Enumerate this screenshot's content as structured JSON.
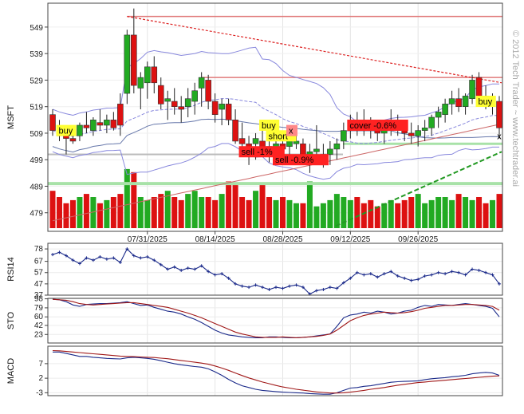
{
  "watermark": "© 2012 Tech Trader ~ www.techtrader.ai",
  "colors": {
    "up": "#22aa22",
    "down": "#dd1111",
    "band": "#8888dd",
    "ma_dark": "#6677aa",
    "ma_red": "#cc6666",
    "blue_line": "#1b2a8a",
    "red_line": "#a01818",
    "green_line": "#1a8a1a",
    "hline_red": "#e07a7a",
    "hline_green": "#a8e2a8",
    "buy_bg": "#ffff33",
    "sell_bg": "#ff2222"
  },
  "chart_data": [
    {
      "name": "MSFT",
      "type": "candlestick",
      "ylabel": "MSFT",
      "ylim": [
        472,
        558
      ],
      "yticks": [
        479,
        489,
        499,
        509,
        519,
        529,
        539,
        549
      ],
      "x_labels": [
        "07/31/2025",
        "08/14/2025",
        "08/28/2025",
        "09/12/2025",
        "09/26/2025"
      ],
      "x_label_index": [
        14,
        24,
        34,
        44,
        54
      ],
      "ohlc": [
        [
          516,
          518,
          508,
          510
        ],
        [
          511,
          514,
          506,
          508
        ],
        [
          509,
          510,
          501,
          507
        ],
        [
          507,
          511,
          505,
          506
        ],
        [
          508,
          513,
          506,
          512
        ],
        [
          512,
          517,
          509,
          511
        ],
        [
          510,
          515,
          508,
          514
        ],
        [
          513,
          518,
          510,
          512
        ],
        [
          512,
          516,
          509,
          514
        ],
        [
          514,
          517,
          510,
          511
        ],
        [
          520,
          524,
          508,
          512
        ],
        [
          524,
          548,
          520,
          546
        ],
        [
          546,
          556,
          524,
          527
        ],
        [
          526,
          532,
          518,
          530
        ],
        [
          528,
          536,
          522,
          534
        ],
        [
          534,
          538,
          524,
          528
        ],
        [
          527,
          530,
          518,
          520
        ],
        [
          521,
          525,
          514,
          522
        ],
        [
          521,
          526,
          516,
          519
        ],
        [
          519,
          523,
          513,
          518
        ],
        [
          519,
          526,
          515,
          522
        ],
        [
          521,
          528,
          516,
          525
        ],
        [
          526,
          532,
          519,
          530
        ],
        [
          529,
          531,
          518,
          521
        ],
        [
          521,
          524,
          513,
          516
        ],
        [
          518,
          522,
          512,
          520
        ],
        [
          520,
          522,
          512,
          514
        ],
        [
          514,
          518,
          505,
          506
        ],
        [
          507,
          513,
          503,
          505
        ],
        [
          505,
          508,
          497,
          503
        ],
        [
          505,
          509,
          499,
          507
        ],
        [
          506,
          510,
          502,
          504
        ],
        [
          504,
          508,
          498,
          501
        ],
        [
          501,
          507,
          497,
          505
        ],
        [
          505,
          508,
          501,
          503
        ],
        [
          504,
          510,
          500,
          506
        ],
        [
          505,
          509,
          503,
          506
        ],
        [
          505,
          507,
          498,
          500
        ],
        [
          500,
          505,
          494,
          502
        ],
        [
          502,
          512,
          498,
          503
        ],
        [
          500,
          505,
          496,
          501
        ],
        [
          501,
          506,
          497,
          503
        ],
        [
          503,
          507,
          499,
          505
        ],
        [
          506,
          513,
          503,
          510
        ],
        [
          510,
          516,
          507,
          511
        ],
        [
          512,
          517,
          508,
          510
        ],
        [
          513,
          518,
          508,
          511
        ],
        [
          511,
          515,
          507,
          510
        ],
        [
          510,
          513,
          506,
          509
        ],
        [
          509,
          514,
          505,
          512
        ],
        [
          512,
          518,
          508,
          514
        ],
        [
          513,
          516,
          508,
          510
        ],
        [
          510,
          514,
          506,
          509
        ],
        [
          509,
          513,
          505,
          508
        ],
        [
          508,
          512,
          504,
          510
        ],
        [
          510,
          514,
          506,
          511
        ],
        [
          511,
          516,
          508,
          515
        ],
        [
          515,
          519,
          511,
          517
        ],
        [
          516,
          522,
          513,
          520
        ],
        [
          520,
          525,
          516,
          522
        ],
        [
          522,
          526,
          517,
          519
        ],
        [
          519,
          524,
          516,
          523
        ],
        [
          522,
          531,
          520,
          529
        ],
        [
          530,
          532,
          521,
          523
        ],
        [
          523,
          527,
          518,
          520
        ],
        [
          520,
          524,
          516,
          521
        ],
        [
          521,
          523,
          507,
          511
        ]
      ],
      "volume_relative": [
        0.6,
        0.5,
        0.4,
        0.45,
        0.5,
        0.55,
        0.5,
        0.4,
        0.45,
        0.5,
        0.55,
        0.95,
        0.9,
        0.5,
        0.45,
        0.5,
        0.55,
        0.6,
        0.5,
        0.45,
        0.55,
        0.6,
        0.5,
        0.5,
        0.45,
        0.55,
        0.75,
        0.7,
        0.5,
        0.45,
        0.6,
        0.7,
        0.5,
        0.45,
        0.5,
        0.45,
        0.4,
        0.4,
        0.75,
        0.35,
        0.4,
        0.45,
        0.55,
        0.5,
        0.45,
        0.5,
        0.4,
        0.45,
        0.35,
        0.4,
        0.45,
        0.4,
        0.45,
        0.5,
        0.55,
        0.4,
        0.45,
        0.5,
        0.5,
        0.45,
        0.55,
        0.5,
        0.45,
        0.5,
        0.4,
        0.45,
        0.55
      ],
      "hlines_red": [
        553,
        530
      ],
      "hlines_green": [
        490
      ],
      "hlines_gray": [
        501
      ],
      "hlines_lightgreen": [
        505
      ],
      "trendline_red": [
        [
          11,
          553
        ],
        [
          66,
          528
        ]
      ],
      "trendline_green": [
        [
          43,
          474
        ],
        [
          66,
          502
        ]
      ],
      "annotations": [
        {
          "index": 1,
          "price": 510,
          "label": "buy",
          "style": "buy"
        },
        {
          "index": 31,
          "price": 512,
          "label": "buy",
          "style": "buy"
        },
        {
          "index": 32,
          "price": 508,
          "label": "short",
          "style": "buy"
        },
        {
          "index": 28,
          "price": 502,
          "label": "sell -1%",
          "style": "sell"
        },
        {
          "index": 33,
          "price": 499,
          "label": "sell -0.9%",
          "style": "sell"
        },
        {
          "index": 44,
          "price": 512,
          "label": "cover -0.6%",
          "style": "sell"
        },
        {
          "index": 35,
          "price": 510,
          "label": "x",
          "style": "x"
        },
        {
          "index": 63,
          "price": 521,
          "label": "buy",
          "style": "buy"
        },
        {
          "index": 66,
          "price": 508,
          "label": "x",
          "style": "xplain"
        }
      ]
    },
    {
      "name": "RSI14",
      "type": "line",
      "ylabel": "RSI14",
      "ylim": [
        37,
        83
      ],
      "yticks": [
        37,
        47,
        57,
        67,
        78
      ],
      "series": [
        {
          "values": [
            73,
            75,
            72,
            68,
            65,
            70,
            68,
            71,
            69,
            70,
            66,
            78,
            72,
            70,
            71,
            68,
            64,
            60,
            62,
            59,
            61,
            60,
            63,
            58,
            55,
            56,
            52,
            47,
            45,
            44,
            46,
            44,
            42,
            44,
            43,
            45,
            46,
            44,
            38,
            41,
            42,
            44,
            43,
            48,
            52,
            57,
            55,
            56,
            53,
            56,
            58,
            54,
            52,
            50,
            51,
            54,
            55,
            57,
            56,
            58,
            57,
            55,
            60,
            59,
            57,
            55,
            47
          ]
        }
      ]
    },
    {
      "name": "STO",
      "type": "line",
      "ylabel": "STO",
      "ylim": [
        5,
        99
      ],
      "yticks": [
        23,
        42,
        60,
        79,
        98
      ],
      "series": [
        {
          "values": [
            97,
            96,
            92,
            85,
            82,
            86,
            87,
            88,
            88,
            89,
            90,
            92,
            88,
            84,
            85,
            80,
            76,
            72,
            70,
            66,
            60,
            55,
            48,
            40,
            32,
            26,
            22,
            20,
            18,
            17,
            16,
            16,
            18,
            18,
            17,
            16,
            16,
            17,
            18,
            20,
            22,
            24,
            40,
            58,
            64,
            66,
            70,
            68,
            72,
            70,
            66,
            68,
            72,
            74,
            80,
            84,
            82,
            86,
            85,
            84,
            86,
            88,
            86,
            84,
            82,
            78,
            60
          ]
        },
        {
          "values": [
            97,
            96,
            95,
            92,
            88,
            86,
            85,
            86,
            87,
            88,
            89,
            90,
            90,
            88,
            86,
            84,
            82,
            80,
            76,
            72,
            68,
            63,
            58,
            52,
            46,
            40,
            34,
            28,
            24,
            21,
            18,
            17,
            17,
            17,
            18,
            17,
            16,
            17,
            18,
            19,
            21,
            24,
            32,
            42,
            52,
            58,
            63,
            66,
            68,
            70,
            69,
            68,
            69,
            71,
            74,
            78,
            80,
            82,
            84,
            84,
            85,
            86,
            86,
            85,
            84,
            82,
            74
          ]
        }
      ]
    },
    {
      "name": "MACD",
      "type": "line",
      "ylabel": "MACD",
      "ylim": [
        -4,
        13
      ],
      "yticks": [
        -3,
        2,
        7
      ],
      "series": [
        {
          "values": [
            11,
            11,
            10.5,
            10,
            9.5,
            9.5,
            9.2,
            9,
            8.8,
            8.7,
            8.6,
            9,
            9.2,
            9,
            8.8,
            8.5,
            8,
            7.5,
            7,
            6.6,
            6.3,
            6,
            5.8,
            5.2,
            4.2,
            3,
            1.6,
            0.4,
            -0.6,
            -1.2,
            -1.8,
            -2.2,
            -2.4,
            -2.6,
            -2.8,
            -2.9,
            -3.0,
            -3.1,
            -3.3,
            -3.4,
            -3.5,
            -3.5,
            -3.0,
            -2.2,
            -1.4,
            -1.2,
            -0.8,
            -0.6,
            -0.2,
            0.2,
            0.6,
            0.8,
            0.9,
            1.0,
            1.1,
            1.5,
            1.8,
            2.0,
            2.2,
            2.5,
            2.7,
            3.0,
            3.5,
            3.8,
            4.0,
            3.8,
            3.0
          ]
        },
        {
          "values": [
            11.5,
            11.4,
            11.2,
            11,
            10.8,
            10.6,
            10.4,
            10.2,
            10,
            9.8,
            9.6,
            9.5,
            9.4,
            9.3,
            9.2,
            9.1,
            8.9,
            8.7,
            8.4,
            8.1,
            7.8,
            7.5,
            7.2,
            6.8,
            6.2,
            5.5,
            4.7,
            3.8,
            2.9,
            2.1,
            1.4,
            0.7,
            0.1,
            -0.5,
            -1.0,
            -1.4,
            -1.8,
            -2.1,
            -2.4,
            -2.7,
            -2.9,
            -3.1,
            -3.1,
            -3.0,
            -2.8,
            -2.5,
            -2.2,
            -1.8,
            -1.5,
            -1.2,
            -0.8,
            -0.4,
            -0.1,
            0.2,
            0.5,
            0.7,
            0.9,
            1.1,
            1.3,
            1.5,
            1.7,
            1.9,
            2.1,
            2.3,
            2.5,
            2.7,
            2.8
          ]
        }
      ]
    }
  ]
}
